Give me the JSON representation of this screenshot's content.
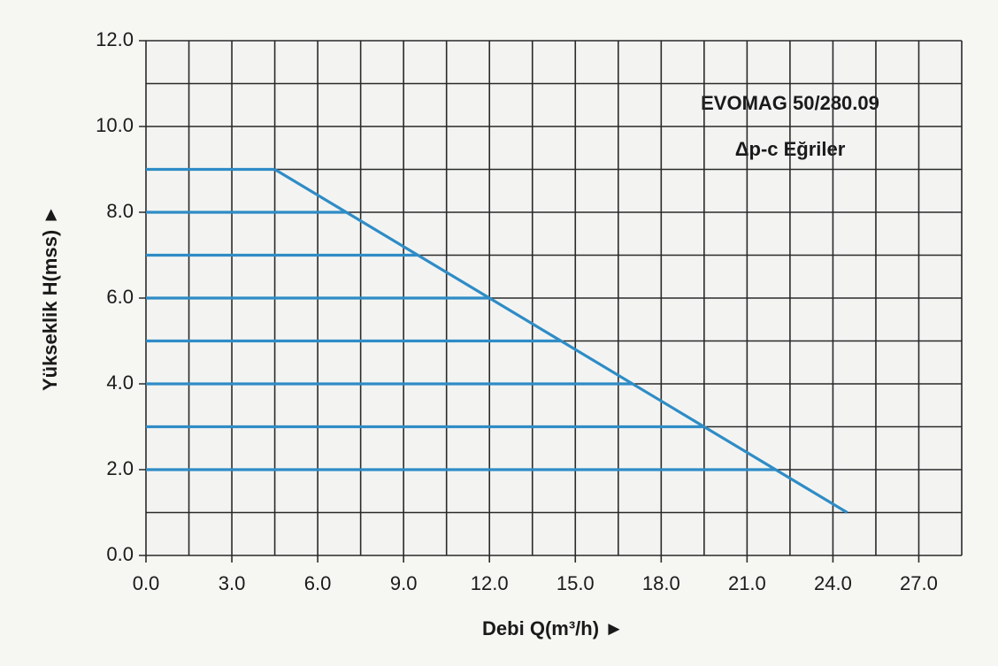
{
  "chart_data": {
    "type": "line",
    "annotations": [
      "EVOMAG 50/280.09",
      "Δp-c Eğriler"
    ],
    "x_label": "Debi Q(m³/h) ►",
    "y_label": "Yükseklik H(mss) ►",
    "xlim": [
      0,
      28.5
    ],
    "ylim": [
      0,
      12
    ],
    "xticks": [
      {
        "value": 0,
        "label": "0.0"
      },
      {
        "value": 3,
        "label": "3.0"
      },
      {
        "value": 6,
        "label": "6.0"
      },
      {
        "value": 9,
        "label": "9.0"
      },
      {
        "value": 12,
        "label": "12.0"
      },
      {
        "value": 15,
        "label": "15.0"
      },
      {
        "value": 18,
        "label": "18.0"
      },
      {
        "value": 21,
        "label": "21.0"
      },
      {
        "value": 24,
        "label": "24.0"
      },
      {
        "value": 27,
        "label": "27.0"
      }
    ],
    "x_minor_ticks": [
      1.5,
      4.5,
      7.5,
      10.5,
      13.5,
      16.5,
      19.5,
      22.5,
      25.5,
      28.5
    ],
    "yticks": [
      {
        "value": 0,
        "label": "0.0"
      },
      {
        "value": 2,
        "label": "2.0"
      },
      {
        "value": 4,
        "label": "4.0"
      },
      {
        "value": 6,
        "label": "6.0"
      },
      {
        "value": 8,
        "label": "8.0"
      },
      {
        "value": 10,
        "label": "10.0"
      },
      {
        "value": 12,
        "label": "12.0"
      }
    ],
    "y_minor_ticks": [
      1,
      3,
      5,
      7,
      9,
      11
    ],
    "grid": true,
    "series": [
      {
        "color": "#2f8cc6",
        "x": [
          0,
          4.5
        ],
        "values": [
          9,
          9
        ]
      },
      {
        "color": "#2f8cc6",
        "x": [
          0,
          7
        ],
        "values": [
          8,
          8
        ]
      },
      {
        "color": "#2f8cc6",
        "x": [
          0,
          9.5
        ],
        "values": [
          7,
          7
        ]
      },
      {
        "color": "#2f8cc6",
        "x": [
          0,
          12
        ],
        "values": [
          6,
          6
        ]
      },
      {
        "color": "#2f8cc6",
        "x": [
          0,
          14.5
        ],
        "values": [
          5,
          5
        ]
      },
      {
        "color": "#2f8cc6",
        "x": [
          0,
          17
        ],
        "values": [
          4,
          4
        ]
      },
      {
        "color": "#2f8cc6",
        "x": [
          0,
          19.5
        ],
        "values": [
          3,
          3
        ]
      },
      {
        "color": "#2f8cc6",
        "x": [
          0,
          22
        ],
        "values": [
          2,
          2
        ]
      },
      {
        "color": "#2f8cc6",
        "x": [
          4.5,
          24.5
        ],
        "values": [
          9,
          1
        ]
      }
    ]
  }
}
